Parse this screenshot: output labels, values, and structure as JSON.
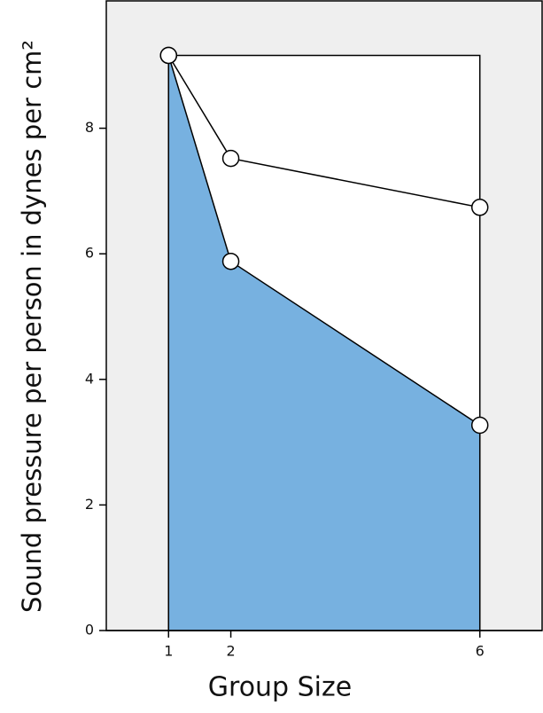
{
  "chart_data": {
    "type": "area-line",
    "x_label": "Group Size",
    "y_label": "Sound pressure per person in dynes per cm²",
    "x": [
      1,
      2,
      6
    ],
    "series": [
      {
        "color": "#ffffff",
        "values": [
          9.16,
          9.16,
          9.16
        ],
        "fill": true,
        "markers": false
      },
      {
        "color": "#77b1e0",
        "values": [
          9.16,
          5.88,
          3.27
        ],
        "fill": true,
        "markers": true
      },
      {
        "color": "#ffffff",
        "values": [
          9.16,
          7.52,
          6.74
        ],
        "fill": false,
        "markers": true
      }
    ],
    "xlim": [
      0,
      7
    ],
    "xticks": [
      1,
      2,
      6
    ],
    "ylim": [
      0,
      10
    ],
    "yticks": [
      0,
      2,
      4,
      6,
      8
    ],
    "background": "#efefef"
  }
}
